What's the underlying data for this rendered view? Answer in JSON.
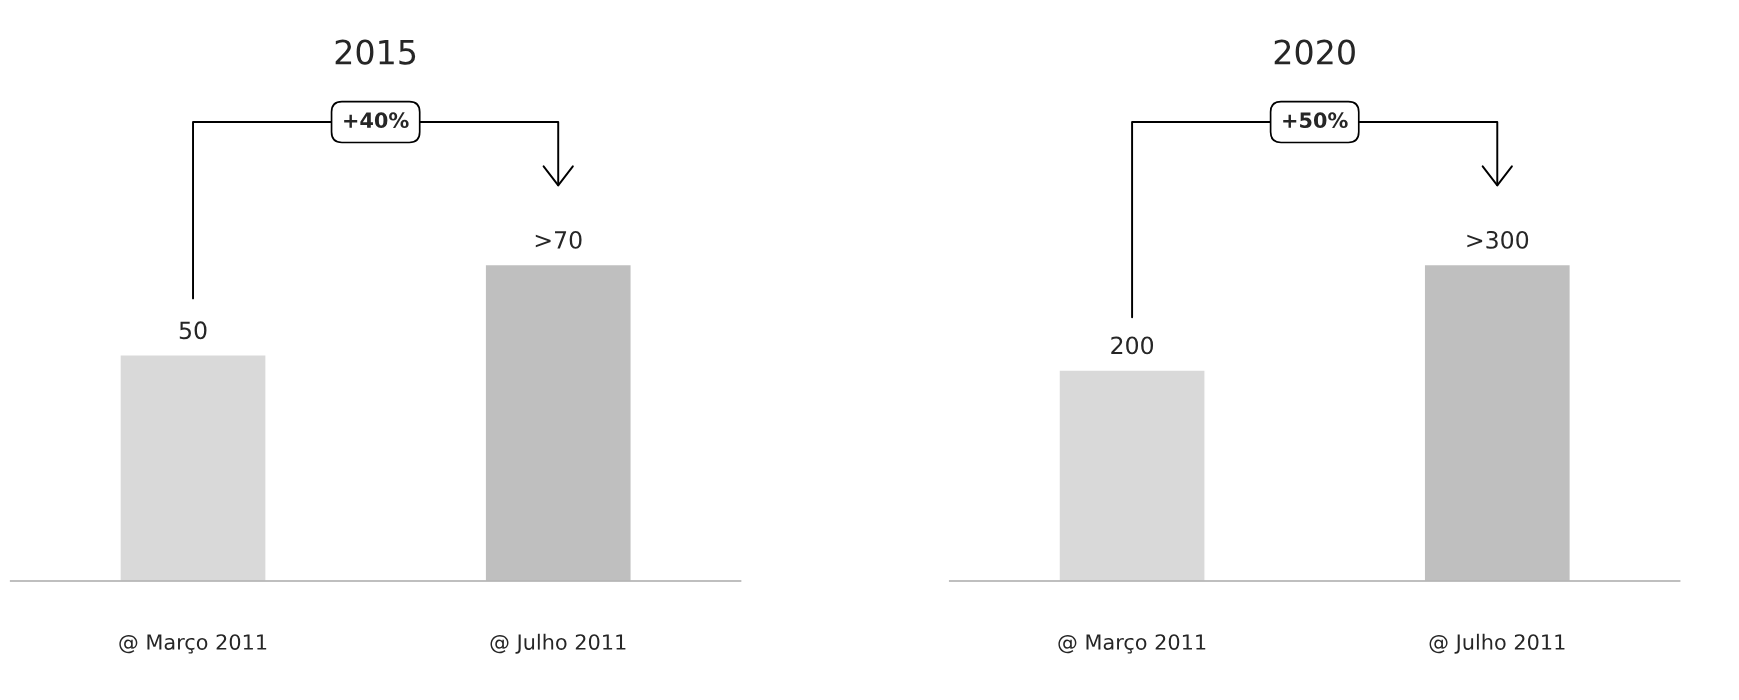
{
  "chart_data": [
    {
      "type": "bar",
      "title": "2015",
      "categories": [
        "@ Março 2011",
        "@ Julho 2011"
      ],
      "values": [
        50,
        70
      ],
      "colors": [
        "#d9d9d9",
        "#bfbfbf"
      ],
      "value_labels": [
        "50",
        ">70"
      ],
      "annotations": [
        "+40%"
      ],
      "grid": false,
      "legend": false
    },
    {
      "type": "bar",
      "title": "2020",
      "categories": [
        "@ Março 2011",
        "@ Julho 2011"
      ],
      "values": [
        200,
        300
      ],
      "colors": [
        "#d9d9d9",
        "#bfbfbf"
      ],
      "value_labels": [
        "200",
        ">300"
      ],
      "annotations": [
        "+50%"
      ],
      "grid": false,
      "legend": false
    }
  ]
}
